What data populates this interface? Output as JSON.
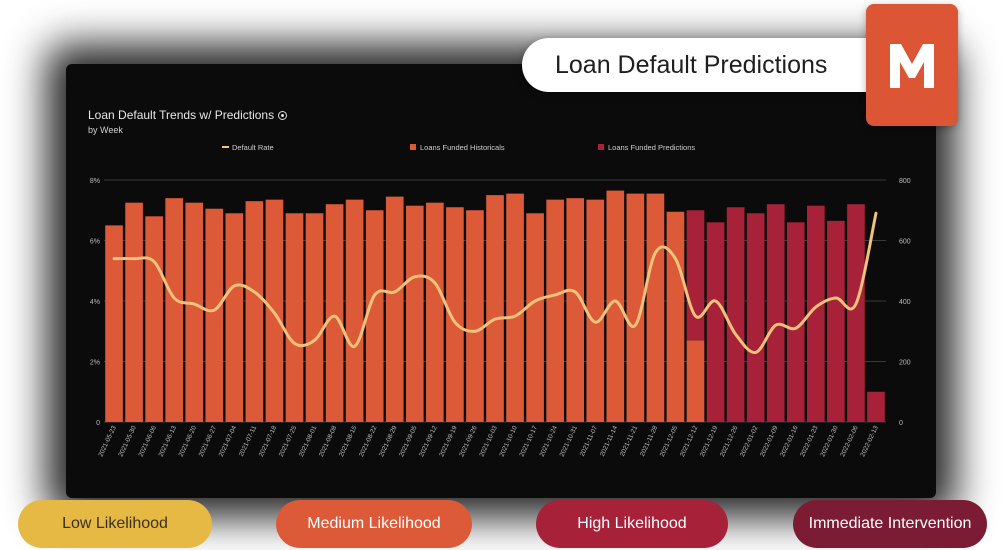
{
  "header": {
    "title": "Loan Default Predictions",
    "logo_letter": "M",
    "logo_color": "#dc5636"
  },
  "likelihood_chips": [
    {
      "label": "Low Likelihood",
      "color": "#e6b844"
    },
    {
      "label": "Medium Likelihood",
      "color": "#dc5a37"
    },
    {
      "label": "High Likelihood",
      "color": "#a72139"
    },
    {
      "label": "Immediate Intervention",
      "color": "#7c1c34"
    }
  ],
  "chart_data": {
    "type": "bar",
    "title": "Loan Default Trends w/ Predictions",
    "subtitle": "by Week",
    "categories": [
      "2021-05-23",
      "2021-05-30",
      "2021-06-06",
      "2021-06-13",
      "2021-06-20",
      "2021-06-27",
      "2021-07-04",
      "2021-07-11",
      "2021-07-18",
      "2021-07-25",
      "2021-08-01",
      "2021-08-08",
      "2021-08-15",
      "2021-08-22",
      "2021-08-29",
      "2021-09-05",
      "2021-09-12",
      "2021-09-19",
      "2021-09-26",
      "2021-10-03",
      "2021-10-10",
      "2021-10-17",
      "2021-10-24",
      "2021-10-31",
      "2021-11-07",
      "2021-11-14",
      "2021-11-21",
      "2021-11-28",
      "2021-12-05",
      "2021-12-12",
      "2021-12-19",
      "2021-12-26",
      "2022-01-02",
      "2022-01-09",
      "2022-01-16",
      "2022-01-23",
      "2022-01-30",
      "2022-02-06",
      "2022-02-13"
    ],
    "left_axis": {
      "ticks": [
        "0",
        "2%",
        "4%",
        "6%",
        "8%"
      ],
      "range": [
        0,
        8
      ]
    },
    "right_axis": {
      "ticks": [
        "0",
        "200",
        "400",
        "600",
        "800"
      ],
      "range": [
        0,
        800
      ]
    },
    "series": [
      {
        "name": "Loans Funded Historicals",
        "kind": "bar",
        "axis": "right",
        "color": "#dc5a37",
        "values": [
          650,
          725,
          680,
          740,
          725,
          705,
          690,
          730,
          735,
          690,
          690,
          720,
          735,
          700,
          745,
          715,
          725,
          710,
          700,
          750,
          755,
          690,
          735,
          740,
          735,
          765,
          755,
          755,
          695,
          270,
          0,
          0,
          0,
          0,
          0,
          0,
          0,
          0,
          0
        ]
      },
      {
        "name": "Loans Funded Predictions",
        "kind": "bar",
        "axis": "right",
        "color": "#a72139",
        "values": [
          0,
          0,
          0,
          0,
          0,
          0,
          0,
          0,
          0,
          0,
          0,
          0,
          0,
          0,
          0,
          0,
          0,
          0,
          0,
          0,
          0,
          0,
          0,
          0,
          0,
          0,
          0,
          0,
          0,
          430,
          660,
          710,
          690,
          720,
          660,
          715,
          665,
          720,
          100
        ]
      },
      {
        "name": "Default Rate",
        "kind": "line",
        "axis": "left",
        "color": "#f0c27b",
        "values": [
          5.4,
          5.4,
          5.3,
          4.1,
          3.9,
          3.7,
          4.5,
          4.3,
          3.6,
          2.6,
          2.7,
          3.5,
          2.5,
          4.2,
          4.3,
          4.8,
          4.6,
          3.3,
          3.0,
          3.4,
          3.5,
          4.0,
          4.2,
          4.3,
          3.3,
          4.0,
          3.2,
          5.6,
          5.4,
          3.5,
          4.0,
          2.9,
          2.3,
          3.2,
          3.1,
          3.8,
          4.1,
          3.9,
          6.9
        ]
      }
    ],
    "legend": {
      "position": "top"
    },
    "grid": true
  }
}
